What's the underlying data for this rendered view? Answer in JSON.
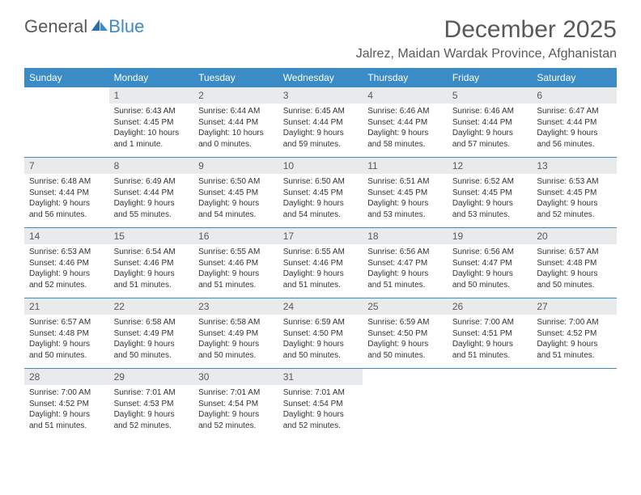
{
  "logo": {
    "text1": "General",
    "text2": "Blue"
  },
  "title": "December 2025",
  "location": "Jalrez, Maidan Wardak Province, Afghanistan",
  "colors": {
    "accent": "#3b8bc6",
    "gray": "#58595b",
    "daynum_bg": "#e9eaeb"
  },
  "daynames": [
    "Sunday",
    "Monday",
    "Tuesday",
    "Wednesday",
    "Thursday",
    "Friday",
    "Saturday"
  ],
  "weeks": [
    [
      null,
      {
        "n": "1",
        "sr": "Sunrise: 6:43 AM",
        "ss": "Sunset: 4:45 PM",
        "dl": "Daylight: 10 hours and 1 minute."
      },
      {
        "n": "2",
        "sr": "Sunrise: 6:44 AM",
        "ss": "Sunset: 4:44 PM",
        "dl": "Daylight: 10 hours and 0 minutes."
      },
      {
        "n": "3",
        "sr": "Sunrise: 6:45 AM",
        "ss": "Sunset: 4:44 PM",
        "dl": "Daylight: 9 hours and 59 minutes."
      },
      {
        "n": "4",
        "sr": "Sunrise: 6:46 AM",
        "ss": "Sunset: 4:44 PM",
        "dl": "Daylight: 9 hours and 58 minutes."
      },
      {
        "n": "5",
        "sr": "Sunrise: 6:46 AM",
        "ss": "Sunset: 4:44 PM",
        "dl": "Daylight: 9 hours and 57 minutes."
      },
      {
        "n": "6",
        "sr": "Sunrise: 6:47 AM",
        "ss": "Sunset: 4:44 PM",
        "dl": "Daylight: 9 hours and 56 minutes."
      }
    ],
    [
      {
        "n": "7",
        "sr": "Sunrise: 6:48 AM",
        "ss": "Sunset: 4:44 PM",
        "dl": "Daylight: 9 hours and 56 minutes."
      },
      {
        "n": "8",
        "sr": "Sunrise: 6:49 AM",
        "ss": "Sunset: 4:44 PM",
        "dl": "Daylight: 9 hours and 55 minutes."
      },
      {
        "n": "9",
        "sr": "Sunrise: 6:50 AM",
        "ss": "Sunset: 4:45 PM",
        "dl": "Daylight: 9 hours and 54 minutes."
      },
      {
        "n": "10",
        "sr": "Sunrise: 6:50 AM",
        "ss": "Sunset: 4:45 PM",
        "dl": "Daylight: 9 hours and 54 minutes."
      },
      {
        "n": "11",
        "sr": "Sunrise: 6:51 AM",
        "ss": "Sunset: 4:45 PM",
        "dl": "Daylight: 9 hours and 53 minutes."
      },
      {
        "n": "12",
        "sr": "Sunrise: 6:52 AM",
        "ss": "Sunset: 4:45 PM",
        "dl": "Daylight: 9 hours and 53 minutes."
      },
      {
        "n": "13",
        "sr": "Sunrise: 6:53 AM",
        "ss": "Sunset: 4:45 PM",
        "dl": "Daylight: 9 hours and 52 minutes."
      }
    ],
    [
      {
        "n": "14",
        "sr": "Sunrise: 6:53 AM",
        "ss": "Sunset: 4:46 PM",
        "dl": "Daylight: 9 hours and 52 minutes."
      },
      {
        "n": "15",
        "sr": "Sunrise: 6:54 AM",
        "ss": "Sunset: 4:46 PM",
        "dl": "Daylight: 9 hours and 51 minutes."
      },
      {
        "n": "16",
        "sr": "Sunrise: 6:55 AM",
        "ss": "Sunset: 4:46 PM",
        "dl": "Daylight: 9 hours and 51 minutes."
      },
      {
        "n": "17",
        "sr": "Sunrise: 6:55 AM",
        "ss": "Sunset: 4:46 PM",
        "dl": "Daylight: 9 hours and 51 minutes."
      },
      {
        "n": "18",
        "sr": "Sunrise: 6:56 AM",
        "ss": "Sunset: 4:47 PM",
        "dl": "Daylight: 9 hours and 51 minutes."
      },
      {
        "n": "19",
        "sr": "Sunrise: 6:56 AM",
        "ss": "Sunset: 4:47 PM",
        "dl": "Daylight: 9 hours and 50 minutes."
      },
      {
        "n": "20",
        "sr": "Sunrise: 6:57 AM",
        "ss": "Sunset: 4:48 PM",
        "dl": "Daylight: 9 hours and 50 minutes."
      }
    ],
    [
      {
        "n": "21",
        "sr": "Sunrise: 6:57 AM",
        "ss": "Sunset: 4:48 PM",
        "dl": "Daylight: 9 hours and 50 minutes."
      },
      {
        "n": "22",
        "sr": "Sunrise: 6:58 AM",
        "ss": "Sunset: 4:49 PM",
        "dl": "Daylight: 9 hours and 50 minutes."
      },
      {
        "n": "23",
        "sr": "Sunrise: 6:58 AM",
        "ss": "Sunset: 4:49 PM",
        "dl": "Daylight: 9 hours and 50 minutes."
      },
      {
        "n": "24",
        "sr": "Sunrise: 6:59 AM",
        "ss": "Sunset: 4:50 PM",
        "dl": "Daylight: 9 hours and 50 minutes."
      },
      {
        "n": "25",
        "sr": "Sunrise: 6:59 AM",
        "ss": "Sunset: 4:50 PM",
        "dl": "Daylight: 9 hours and 50 minutes."
      },
      {
        "n": "26",
        "sr": "Sunrise: 7:00 AM",
        "ss": "Sunset: 4:51 PM",
        "dl": "Daylight: 9 hours and 51 minutes."
      },
      {
        "n": "27",
        "sr": "Sunrise: 7:00 AM",
        "ss": "Sunset: 4:52 PM",
        "dl": "Daylight: 9 hours and 51 minutes."
      }
    ],
    [
      {
        "n": "28",
        "sr": "Sunrise: 7:00 AM",
        "ss": "Sunset: 4:52 PM",
        "dl": "Daylight: 9 hours and 51 minutes."
      },
      {
        "n": "29",
        "sr": "Sunrise: 7:01 AM",
        "ss": "Sunset: 4:53 PM",
        "dl": "Daylight: 9 hours and 52 minutes."
      },
      {
        "n": "30",
        "sr": "Sunrise: 7:01 AM",
        "ss": "Sunset: 4:54 PM",
        "dl": "Daylight: 9 hours and 52 minutes."
      },
      {
        "n": "31",
        "sr": "Sunrise: 7:01 AM",
        "ss": "Sunset: 4:54 PM",
        "dl": "Daylight: 9 hours and 52 minutes."
      },
      null,
      null,
      null
    ]
  ]
}
